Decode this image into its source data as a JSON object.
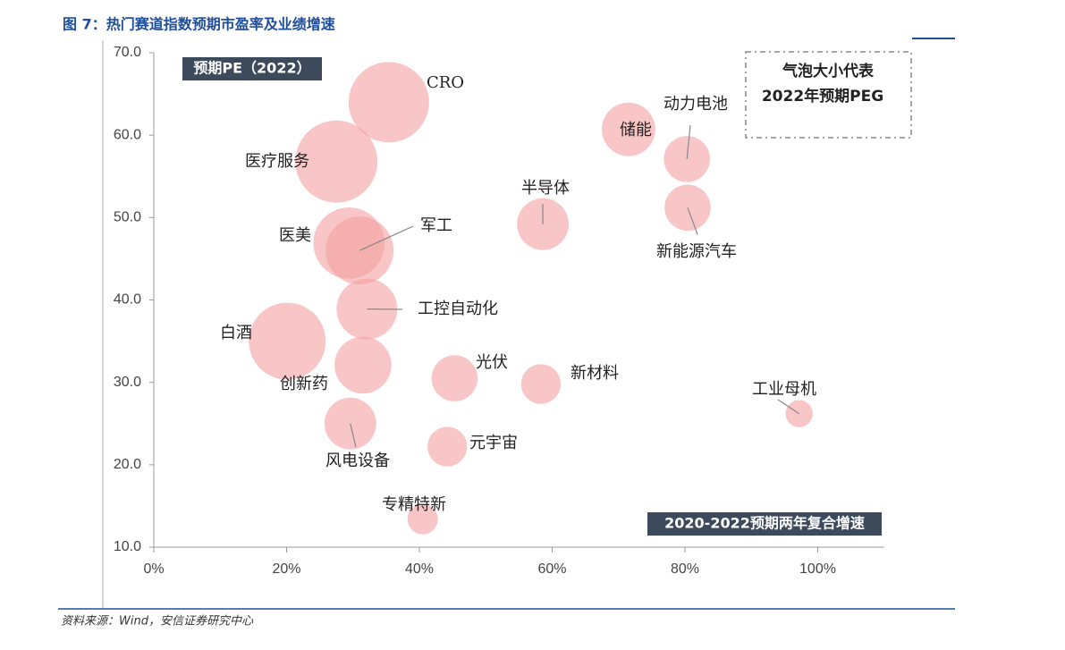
{
  "header": "图 7：热门赛道指数预期市盈率及业绩增速",
  "source": "资料来源：Wind，安信证券研究中心",
  "chart_data": {
    "type": "bubble",
    "y_label": "预期PE（2022）",
    "x_label": "2020-2022预期两年复合增速",
    "size_legend": [
      "气泡大小代表",
      "2022年预期PEG"
    ],
    "color": "#f4a0a0",
    "xlim": [
      0,
      110
    ],
    "ylim": [
      10,
      70
    ],
    "xticks": [
      {
        "value": 0,
        "label": "0%"
      },
      {
        "value": 20,
        "label": "20%"
      },
      {
        "value": 40,
        "label": "40%"
      },
      {
        "value": 60,
        "label": "60%"
      },
      {
        "value": 80,
        "label": "80%"
      },
      {
        "value": 100,
        "label": "100%"
      }
    ],
    "yticks": [
      {
        "value": 10,
        "label": "10.0"
      },
      {
        "value": 20,
        "label": "20.0"
      },
      {
        "value": 30,
        "label": "30.0"
      },
      {
        "value": 40,
        "label": "40.0"
      },
      {
        "value": 50,
        "label": "50.0"
      },
      {
        "value": 60,
        "label": "60.0"
      },
      {
        "value": 70,
        "label": "70.0"
      }
    ],
    "labels": [
      "CRO",
      "医疗服务",
      "医美",
      "军工",
      "工控自动化",
      "白酒",
      "创新药",
      "风电设备",
      "光伏",
      "元宇宙",
      "专精特新",
      "半导体",
      "新材料",
      "储能",
      "动力电池",
      "新能源汽车",
      "工业母机"
    ],
    "x": [
      35.4,
      27.5,
      29.4,
      31.0,
      32.1,
      20.1,
      31.5,
      29.6,
      45.3,
      44.2,
      40.5,
      58.6,
      58.3,
      71.5,
      80.3,
      80.4,
      97.2
    ],
    "y": [
      64.0,
      56.8,
      46.9,
      46.0,
      38.9,
      35.0,
      32.1,
      25.0,
      30.5,
      22.2,
      13.4,
      49.2,
      29.8,
      60.7,
      57.1,
      51.2,
      26.2
    ],
    "sizes": [
      7.0,
      7.3,
      5.5,
      5.0,
      4.0,
      6.4,
      3.5,
      2.9,
      2.3,
      1.7,
      1.0,
      2.9,
      1.7,
      3.1,
      2.3,
      2.3,
      0.8
    ]
  }
}
